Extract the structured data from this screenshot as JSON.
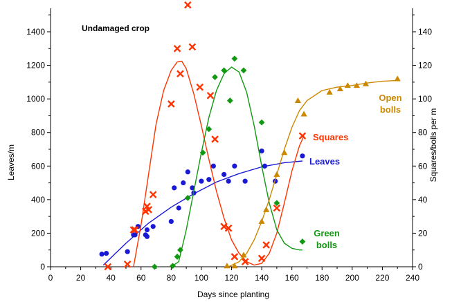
{
  "chart_data": {
    "type": "scatter",
    "title": "Undamaged crop",
    "xlabel": "Days since planting",
    "ylabel_left": "Leaves/m",
    "ylabel_right": "Squares/bolls per m",
    "xlim": [
      0,
      240
    ],
    "xticks": [
      0,
      20,
      40,
      60,
      80,
      100,
      120,
      140,
      160,
      180,
      200,
      220,
      240
    ],
    "ylim_left": [
      0,
      1540
    ],
    "yticks_left": [
      0,
      200,
      400,
      600,
      800,
      1000,
      1200,
      1400
    ],
    "ylim_right": [
      0,
      154
    ],
    "yticks_right": [
      0,
      20,
      40,
      60,
      80,
      100,
      120,
      140
    ],
    "grid": false,
    "series": [
      {
        "name": "Leaves",
        "label_lines": [
          "Leaves"
        ],
        "axis": "left",
        "marker": "circle",
        "color": "#1a1ad6",
        "points": [
          [
            34,
            75
          ],
          [
            37,
            80
          ],
          [
            51,
            90
          ],
          [
            55,
            190
          ],
          [
            56,
            190
          ],
          [
            58,
            240
          ],
          [
            63,
            190
          ],
          [
            64,
            220
          ],
          [
            64,
            180
          ],
          [
            68,
            240
          ],
          [
            80,
            270
          ],
          [
            82,
            470
          ],
          [
            85,
            350
          ],
          [
            88,
            500
          ],
          [
            91,
            565
          ],
          [
            94,
            470
          ],
          [
            95,
            440
          ],
          [
            100,
            510
          ],
          [
            105,
            520
          ],
          [
            108,
            600
          ],
          [
            115,
            550
          ],
          [
            118,
            510
          ],
          [
            122,
            600
          ],
          [
            129,
            510
          ],
          [
            140,
            690
          ],
          [
            142,
            600
          ],
          [
            149,
            510
          ],
          [
            167,
            660
          ]
        ],
        "fit": [
          [
            35,
            10
          ],
          [
            50,
            140
          ],
          [
            65,
            260
          ],
          [
            80,
            355
          ],
          [
            95,
            435
          ],
          [
            110,
            505
          ],
          [
            125,
            555
          ],
          [
            140,
            595
          ],
          [
            155,
            620
          ],
          [
            167,
            630
          ]
        ]
      },
      {
        "name": "Squares",
        "label_lines": [
          "Squares"
        ],
        "axis": "right",
        "marker": "cross",
        "color": "#ff3300",
        "points": [
          [
            38,
            0
          ],
          [
            51,
            1.5
          ],
          [
            55,
            22
          ],
          [
            56,
            22
          ],
          [
            63,
            33
          ],
          [
            64,
            36
          ],
          [
            65,
            34
          ],
          [
            68,
            43
          ],
          [
            80,
            97
          ],
          [
            84,
            130
          ],
          [
            86,
            115
          ],
          [
            91,
            156
          ],
          [
            94,
            131
          ],
          [
            99,
            107
          ],
          [
            106,
            102
          ],
          [
            109,
            76
          ],
          [
            115,
            24
          ],
          [
            118,
            23
          ],
          [
            122,
            6
          ],
          [
            129,
            3
          ],
          [
            140,
            5
          ],
          [
            143,
            13
          ],
          [
            150,
            35
          ],
          [
            167,
            78
          ]
        ],
        "fit": [
          [
            55,
            0
          ],
          [
            60,
            25
          ],
          [
            65,
            55
          ],
          [
            70,
            85
          ],
          [
            75,
            105
          ],
          [
            80,
            117
          ],
          [
            84,
            122
          ],
          [
            87,
            122.5
          ],
          [
            90,
            118
          ],
          [
            95,
            103
          ],
          [
            100,
            84
          ],
          [
            105,
            64
          ],
          [
            110,
            45
          ],
          [
            115,
            29
          ],
          [
            120,
            16
          ],
          [
            125,
            8
          ],
          [
            130,
            3
          ],
          [
            135,
            1
          ],
          [
            140,
            2
          ],
          [
            145,
            8
          ],
          [
            150,
            20
          ],
          [
            155,
            38
          ],
          [
            160,
            57
          ],
          [
            165,
            72
          ],
          [
            168,
            78
          ]
        ]
      },
      {
        "name": "Green bolls",
        "label_lines": [
          "Green",
          "bolls"
        ],
        "axis": "right",
        "marker": "diamond",
        "color": "#119911",
        "points": [
          [
            69,
            0
          ],
          [
            81,
            0.5
          ],
          [
            84,
            6
          ],
          [
            86,
            10
          ],
          [
            91,
            41
          ],
          [
            101,
            68
          ],
          [
            105,
            82
          ],
          [
            109,
            113
          ],
          [
            115,
            117
          ],
          [
            119,
            99
          ],
          [
            122,
            124
          ],
          [
            128,
            117
          ],
          [
            140,
            86
          ],
          [
            150,
            38
          ],
          [
            167,
            15
          ]
        ],
        "fit": [
          [
            80,
            0
          ],
          [
            85,
            3
          ],
          [
            90,
            22
          ],
          [
            95,
            45
          ],
          [
            100,
            68
          ],
          [
            105,
            89
          ],
          [
            110,
            105
          ],
          [
            115,
            115
          ],
          [
            120,
            119
          ],
          [
            125,
            116
          ],
          [
            130,
            104
          ],
          [
            135,
            84
          ],
          [
            140,
            60
          ],
          [
            145,
            38
          ],
          [
            150,
            22
          ],
          [
            155,
            14
          ],
          [
            160,
            11
          ],
          [
            165,
            10
          ],
          [
            167,
            10
          ]
        ]
      },
      {
        "name": "Open bolls",
        "label_lines": [
          "Open",
          "bolls"
        ],
        "axis": "right",
        "marker": "triangle",
        "color": "#cc8800",
        "points": [
          [
            117,
            0.5
          ],
          [
            122,
            0.5
          ],
          [
            128,
            7
          ],
          [
            140,
            27
          ],
          [
            143,
            34
          ],
          [
            150,
            55
          ],
          [
            155,
            68
          ],
          [
            164,
            99
          ],
          [
            168,
            91
          ],
          [
            185,
            104
          ],
          [
            192,
            106
          ],
          [
            197,
            108
          ],
          [
            203,
            108
          ],
          [
            209,
            109
          ],
          [
            230,
            112
          ]
        ],
        "fit": [
          [
            118,
            0
          ],
          [
            125,
            3
          ],
          [
            130,
            8
          ],
          [
            135,
            16
          ],
          [
            140,
            27
          ],
          [
            145,
            40
          ],
          [
            150,
            55
          ],
          [
            155,
            70
          ],
          [
            160,
            83
          ],
          [
            165,
            93
          ],
          [
            170,
            99
          ],
          [
            180,
            105
          ],
          [
            190,
            107
          ],
          [
            200,
            108
          ],
          [
            210,
            109.5
          ],
          [
            220,
            110.5
          ],
          [
            230,
            111
          ]
        ]
      }
    ]
  }
}
